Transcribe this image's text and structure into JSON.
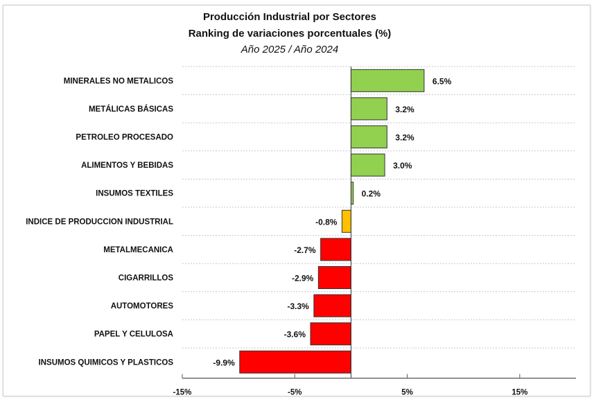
{
  "chart_data": {
    "type": "bar",
    "orientation": "horizontal",
    "title": "Producción Industrial por Sectores",
    "subtitle": "Ranking de variaciones porcentuales (%)",
    "subtitle2": "Año 2025 / Año 2024",
    "categories": [
      "MINERALES NO METALICOS",
      "METÁLICAS BÁSICAS",
      "PETROLEO PROCESADO",
      "ALIMENTOS Y BEBIDAS",
      "INSUMOS TEXTILES",
      "INDICE DE PRODUCCION INDUSTRIAL",
      "METALMECANICA",
      "CIGARRILLOS",
      "AUTOMOTORES",
      "PAPEL Y CELULOSA",
      "INSUMOS QUIMICOS Y PLASTICOS"
    ],
    "values": [
      6.5,
      3.2,
      3.2,
      3.0,
      0.2,
      -0.8,
      -2.7,
      -2.9,
      -3.3,
      -3.6,
      -9.9
    ],
    "data_labels": [
      "6.5%",
      "3.2%",
      "3.2%",
      "3.0%",
      "0.2%",
      "-0.8%",
      "-2.7%",
      "-2.9%",
      "-3.3%",
      "-3.6%",
      "-9.9%"
    ],
    "xlim": [
      -15,
      20
    ],
    "xticks": [
      -15,
      -5,
      5,
      15
    ],
    "xtick_labels": [
      "-15%",
      "-5%",
      "5%",
      "15%"
    ],
    "grid": "horizontal dashed",
    "colors": {
      "positive": "#92d050",
      "index": "#ffc000",
      "negative": "#ff0000"
    }
  }
}
